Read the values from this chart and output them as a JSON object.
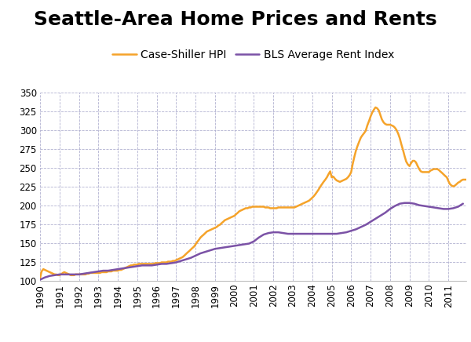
{
  "title": "Seattle-Area Home Prices and Rents",
  "hpi_label": "Case-Shiller HPI",
  "rent_label": "BLS Average Rent Index",
  "hpi_color": "#F5A32A",
  "rent_color": "#7B52A6",
  "background_color": "#FFFFFF",
  "grid_color": "#AAAACC",
  "ylim": [
    100,
    350
  ],
  "yticks": [
    100,
    125,
    150,
    175,
    200,
    225,
    250,
    275,
    300,
    325,
    350
  ],
  "xlim_start": 1990.0,
  "xlim_end": 2011.92,
  "title_fontsize": 18,
  "legend_fontsize": 10,
  "tick_fontsize": 8.5,
  "hpi_x": [
    1990.0,
    1990.08,
    1990.17,
    1990.25,
    1990.33,
    1990.42,
    1990.5,
    1990.58,
    1990.67,
    1990.75,
    1990.83,
    1990.92,
    1991.0,
    1991.08,
    1991.17,
    1991.25,
    1991.33,
    1991.42,
    1991.5,
    1991.58,
    1991.67,
    1991.75,
    1991.83,
    1991.92,
    1992.0,
    1992.08,
    1992.17,
    1992.25,
    1992.33,
    1992.42,
    1992.5,
    1992.58,
    1992.67,
    1992.75,
    1992.83,
    1992.92,
    1993.0,
    1993.08,
    1993.17,
    1993.25,
    1993.33,
    1993.42,
    1993.5,
    1993.58,
    1993.67,
    1993.75,
    1993.83,
    1993.92,
    1994.0,
    1994.08,
    1994.17,
    1994.25,
    1994.33,
    1994.42,
    1994.5,
    1994.58,
    1994.67,
    1994.75,
    1994.83,
    1994.92,
    1995.0,
    1995.08,
    1995.17,
    1995.25,
    1995.33,
    1995.42,
    1995.5,
    1995.58,
    1995.67,
    1995.75,
    1995.83,
    1995.92,
    1996.0,
    1996.08,
    1996.17,
    1996.25,
    1996.33,
    1996.42,
    1996.5,
    1996.58,
    1996.67,
    1996.75,
    1996.83,
    1996.92,
    1997.0,
    1997.08,
    1997.17,
    1997.25,
    1997.33,
    1997.42,
    1997.5,
    1997.58,
    1997.67,
    1997.75,
    1997.83,
    1997.92,
    1998.0,
    1998.08,
    1998.17,
    1998.25,
    1998.33,
    1998.42,
    1998.5,
    1998.58,
    1998.67,
    1998.75,
    1998.83,
    1998.92,
    1999.0,
    1999.08,
    1999.17,
    1999.25,
    1999.33,
    1999.42,
    1999.5,
    1999.58,
    1999.67,
    1999.75,
    1999.83,
    1999.92,
    2000.0,
    2000.08,
    2000.17,
    2000.25,
    2000.33,
    2000.42,
    2000.5,
    2000.58,
    2000.67,
    2000.75,
    2000.83,
    2000.92,
    2001.0,
    2001.08,
    2001.17,
    2001.25,
    2001.33,
    2001.42,
    2001.5,
    2001.58,
    2001.67,
    2001.75,
    2001.83,
    2001.92,
    2002.0,
    2002.08,
    2002.17,
    2002.25,
    2002.33,
    2002.42,
    2002.5,
    2002.58,
    2002.67,
    2002.75,
    2002.83,
    2002.92,
    2003.0,
    2003.08,
    2003.17,
    2003.25,
    2003.33,
    2003.42,
    2003.5,
    2003.58,
    2003.67,
    2003.75,
    2003.83,
    2003.92,
    2004.0,
    2004.08,
    2004.17,
    2004.25,
    2004.33,
    2004.42,
    2004.5,
    2004.58,
    2004.67,
    2004.75,
    2004.83,
    2004.92,
    2005.0,
    2005.08,
    2005.17,
    2005.25,
    2005.33,
    2005.42,
    2005.5,
    2005.58,
    2005.67,
    2005.75,
    2005.83,
    2005.92,
    2006.0,
    2006.08,
    2006.17,
    2006.25,
    2006.33,
    2006.42,
    2006.5,
    2006.58,
    2006.67,
    2006.75,
    2006.83,
    2006.92,
    2007.0,
    2007.08,
    2007.17,
    2007.25,
    2007.33,
    2007.42,
    2007.5,
    2007.58,
    2007.67,
    2007.75,
    2007.83,
    2007.92,
    2008.0,
    2008.08,
    2008.17,
    2008.25,
    2008.33,
    2008.42,
    2008.5,
    2008.58,
    2008.67,
    2008.75,
    2008.83,
    2008.92,
    2009.0,
    2009.08,
    2009.17,
    2009.25,
    2009.33,
    2009.42,
    2009.5,
    2009.58,
    2009.67,
    2009.75,
    2009.83,
    2009.92,
    2010.0,
    2010.08,
    2010.17,
    2010.25,
    2010.33,
    2010.42,
    2010.5,
    2010.58,
    2010.67,
    2010.75,
    2010.83,
    2010.92,
    2011.0,
    2011.08,
    2011.17,
    2011.25,
    2011.33,
    2011.42,
    2011.5,
    2011.58,
    2011.67,
    2011.75,
    2011.83,
    2011.92
  ],
  "hpi_y": [
    103,
    112,
    115,
    114,
    113,
    112,
    111,
    110,
    109,
    108,
    108,
    107,
    107,
    108,
    110,
    111,
    110,
    109,
    108,
    107,
    107,
    107,
    108,
    108,
    108,
    108,
    108,
    108,
    108,
    109,
    109,
    110,
    110,
    110,
    110,
    110,
    110,
    110,
    111,
    111,
    111,
    111,
    112,
    112,
    112,
    113,
    113,
    113,
    113,
    114,
    114,
    115,
    116,
    117,
    118,
    119,
    120,
    120,
    121,
    121,
    121,
    122,
    122,
    122,
    122,
    122,
    122,
    122,
    122,
    122,
    122,
    123,
    123,
    123,
    123,
    124,
    124,
    124,
    124,
    125,
    125,
    125,
    126,
    126,
    127,
    128,
    129,
    130,
    131,
    133,
    135,
    137,
    139,
    141,
    143,
    145,
    148,
    151,
    154,
    157,
    159,
    161,
    163,
    165,
    166,
    167,
    168,
    169,
    170,
    171,
    173,
    174,
    176,
    178,
    180,
    181,
    182,
    183,
    184,
    185,
    186,
    188,
    190,
    192,
    193,
    194,
    195,
    196,
    196,
    197,
    197,
    198,
    198,
    198,
    198,
    198,
    198,
    198,
    198,
    197,
    197,
    197,
    196,
    196,
    196,
    196,
    196,
    197,
    197,
    197,
    197,
    197,
    197,
    197,
    197,
    197,
    197,
    197,
    198,
    199,
    200,
    201,
    202,
    203,
    204,
    205,
    206,
    208,
    210,
    212,
    215,
    218,
    221,
    225,
    228,
    231,
    234,
    237,
    241,
    245,
    237,
    238,
    235,
    233,
    232,
    231,
    232,
    233,
    234,
    235,
    237,
    240,
    244,
    255,
    265,
    273,
    279,
    285,
    290,
    293,
    296,
    299,
    306,
    312,
    318,
    323,
    327,
    330,
    329,
    326,
    320,
    314,
    310,
    308,
    307,
    307,
    307,
    306,
    305,
    303,
    300,
    295,
    289,
    281,
    273,
    265,
    258,
    254,
    252,
    256,
    259,
    259,
    257,
    252,
    248,
    245,
    244,
    244,
    244,
    244,
    244,
    246,
    247,
    248,
    248,
    248,
    247,
    245,
    243,
    241,
    239,
    237,
    232,
    228,
    226,
    225,
    226,
    228,
    230,
    231,
    233,
    234,
    234,
    234
  ],
  "rent_x": [
    1990.0,
    1990.25,
    1990.5,
    1990.75,
    1991.0,
    1991.25,
    1991.5,
    1991.75,
    1992.0,
    1992.25,
    1992.5,
    1992.75,
    1993.0,
    1993.25,
    1993.5,
    1993.75,
    1994.0,
    1994.25,
    1994.5,
    1994.75,
    1995.0,
    1995.25,
    1995.5,
    1995.75,
    1996.0,
    1996.25,
    1996.5,
    1996.75,
    1997.0,
    1997.25,
    1997.5,
    1997.75,
    1998.0,
    1998.25,
    1998.5,
    1998.75,
    1999.0,
    1999.25,
    1999.5,
    1999.75,
    2000.0,
    2000.25,
    2000.5,
    2000.75,
    2001.0,
    2001.25,
    2001.5,
    2001.75,
    2002.0,
    2002.25,
    2002.5,
    2002.75,
    2003.0,
    2003.25,
    2003.5,
    2003.75,
    2004.0,
    2004.25,
    2004.5,
    2004.75,
    2005.0,
    2005.25,
    2005.5,
    2005.75,
    2006.0,
    2006.25,
    2006.5,
    2006.75,
    2007.0,
    2007.25,
    2007.5,
    2007.75,
    2008.0,
    2008.25,
    2008.5,
    2008.75,
    2009.0,
    2009.25,
    2009.5,
    2009.75,
    2010.0,
    2010.25,
    2010.5,
    2010.75,
    2011.0,
    2011.25,
    2011.5,
    2011.75
  ],
  "rent_y": [
    101,
    104,
    106,
    107,
    108,
    108,
    108,
    108,
    108,
    109,
    110,
    111,
    112,
    113,
    113,
    114,
    115,
    116,
    117,
    118,
    119,
    120,
    120,
    120,
    121,
    122,
    122,
    123,
    124,
    126,
    128,
    130,
    133,
    136,
    138,
    140,
    142,
    143,
    144,
    145,
    146,
    147,
    148,
    149,
    152,
    157,
    161,
    163,
    164,
    164,
    163,
    162,
    162,
    162,
    162,
    162,
    162,
    162,
    162,
    162,
    162,
    162,
    163,
    164,
    166,
    168,
    171,
    174,
    178,
    182,
    186,
    190,
    195,
    199,
    202,
    203,
    203,
    202,
    200,
    199,
    198,
    197,
    196,
    195,
    195,
    196,
    198,
    202
  ]
}
